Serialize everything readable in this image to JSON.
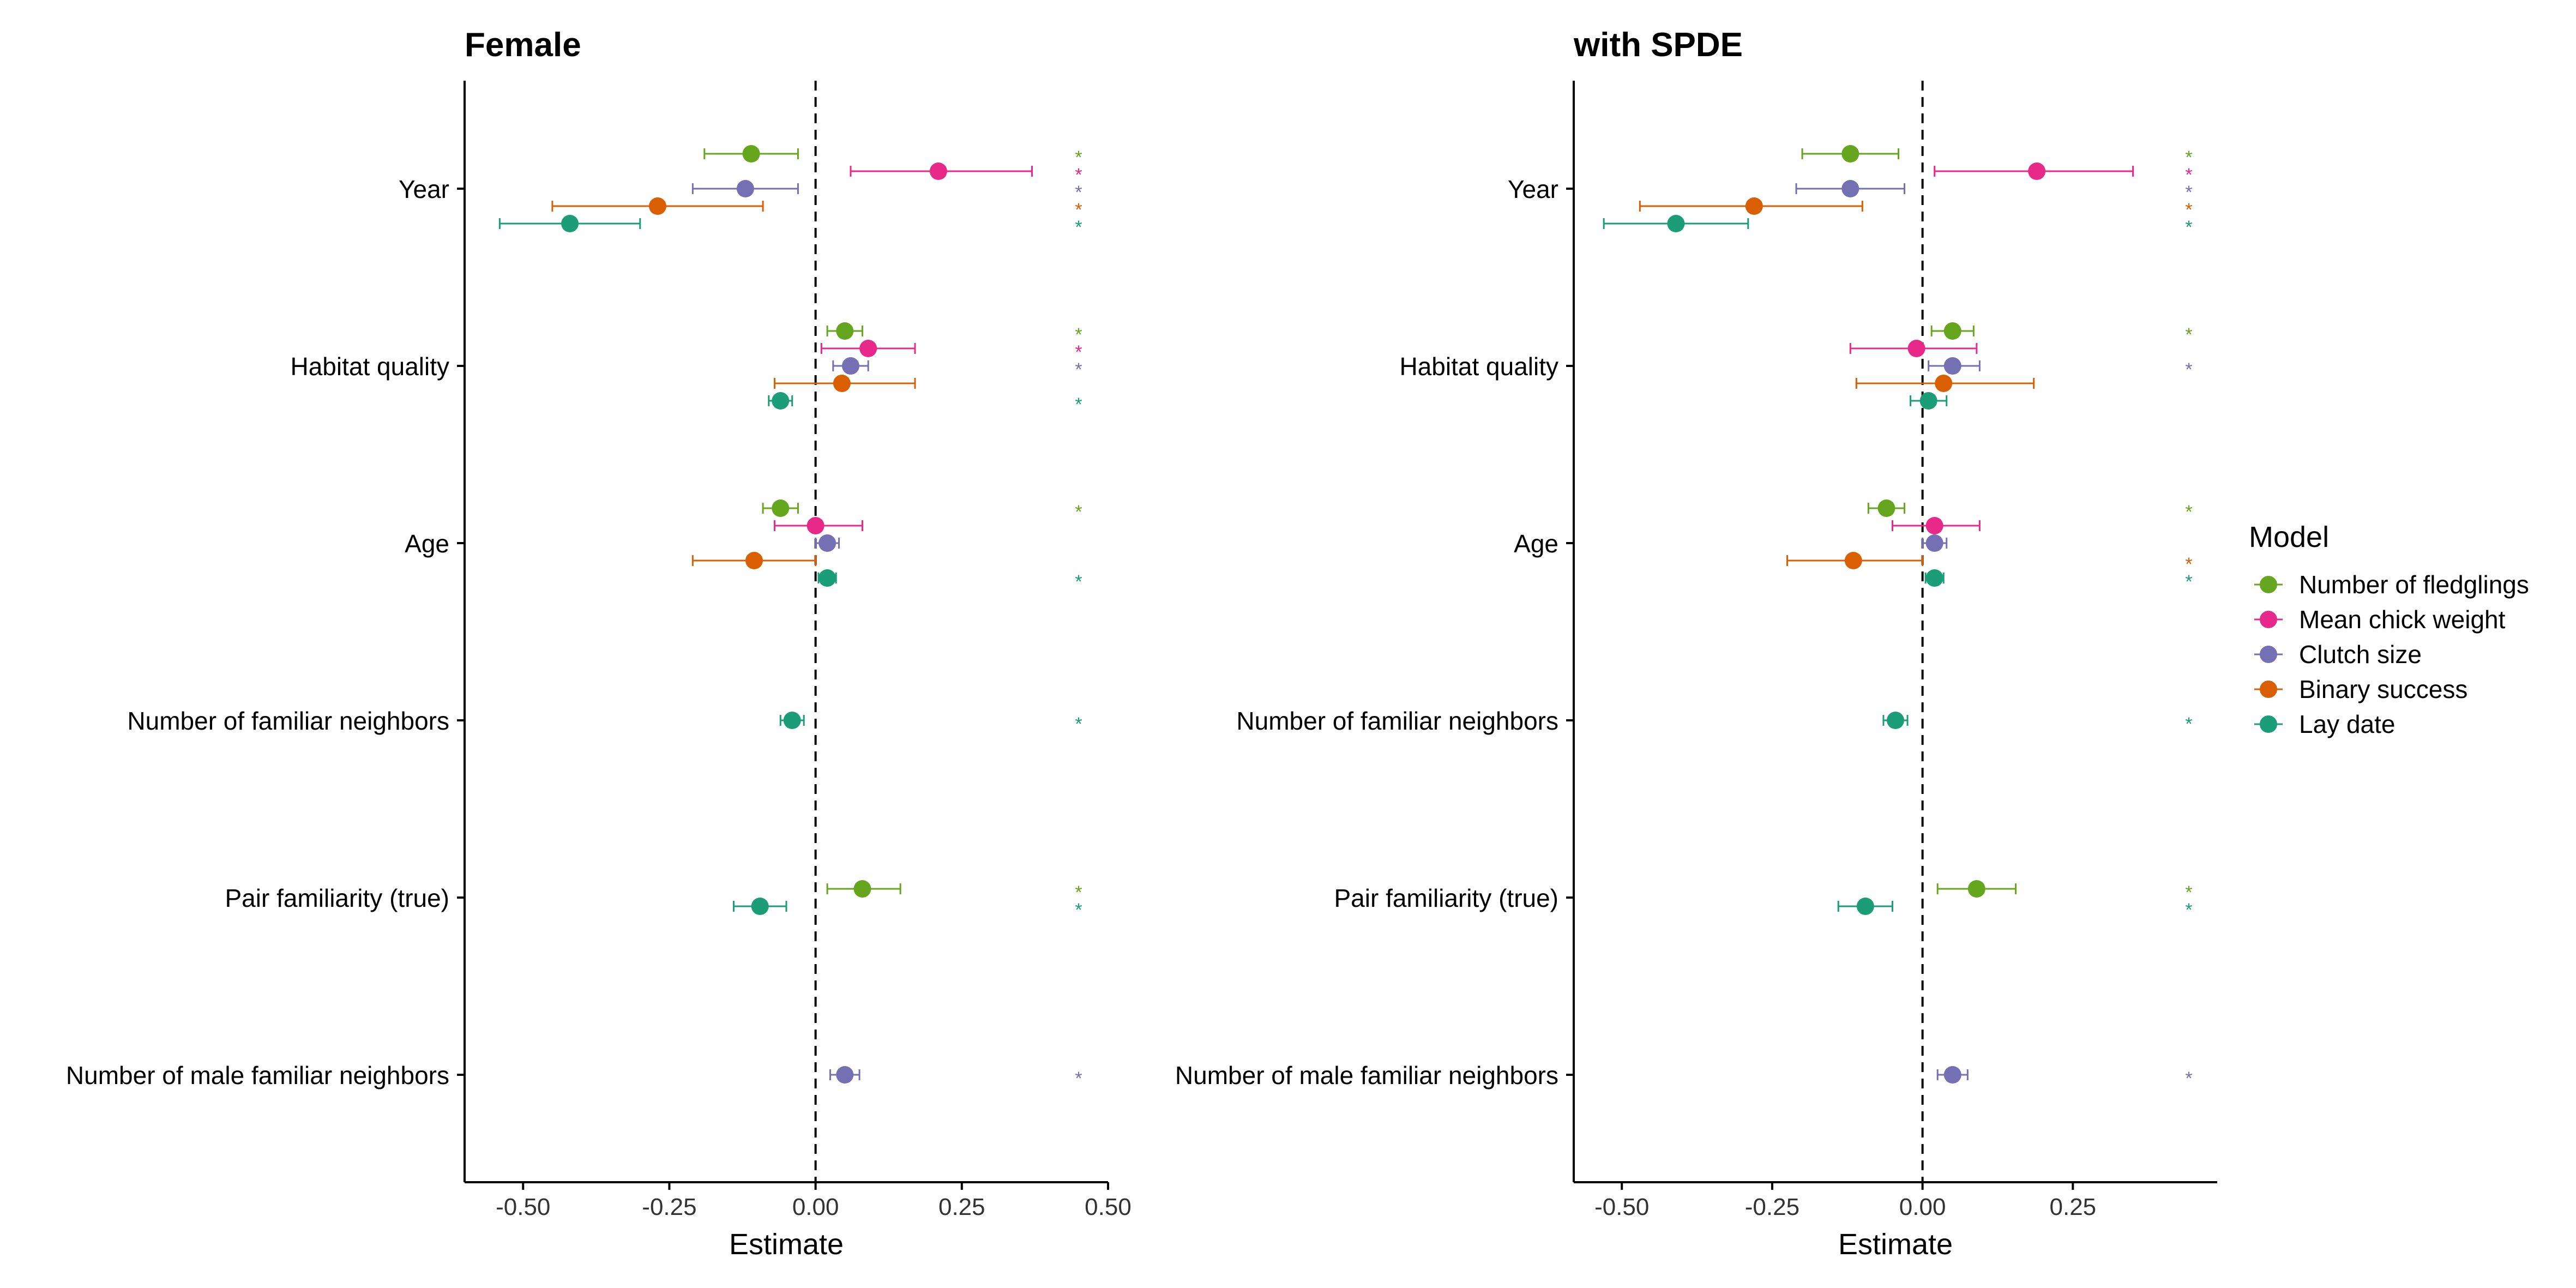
{
  "chart_data": [
    {
      "type": "dot-whisker",
      "title": "Female",
      "xlabel": "Estimate",
      "ylabel": "",
      "xlim": [
        -0.6,
        0.5
      ],
      "xticks": [
        -0.5,
        -0.25,
        0.0,
        0.25,
        0.5
      ],
      "xtick_labels": [
        "-0.50",
        "-0.25",
        "0.00",
        "0.25",
        "0.50"
      ],
      "reference_line": 0,
      "categories": [
        "Year",
        "Habitat quality",
        "Age",
        "Number of familiar neighbors",
        "Pair familiarity (true)",
        "Number of male familiar neighbors"
      ],
      "series": [
        {
          "name": "Number of fledglings",
          "points": [
            {
              "category": "Year",
              "estimate": -0.11,
              "lower": -0.19,
              "upper": -0.03,
              "significant": true
            },
            {
              "category": "Habitat quality",
              "estimate": 0.05,
              "lower": 0.02,
              "upper": 0.08,
              "significant": true
            },
            {
              "category": "Age",
              "estimate": -0.06,
              "lower": -0.09,
              "upper": -0.03,
              "significant": true
            },
            {
              "category": "Pair familiarity (true)",
              "estimate": 0.08,
              "lower": 0.02,
              "upper": 0.145,
              "significant": true
            }
          ]
        },
        {
          "name": "Mean chick weight",
          "points": [
            {
              "category": "Year",
              "estimate": 0.21,
              "lower": 0.06,
              "upper": 0.37,
              "significant": true
            },
            {
              "category": "Habitat quality",
              "estimate": 0.09,
              "lower": 0.01,
              "upper": 0.17,
              "significant": true
            },
            {
              "category": "Age",
              "estimate": 0.0,
              "lower": -0.07,
              "upper": 0.08,
              "significant": false
            }
          ]
        },
        {
          "name": "Clutch size",
          "points": [
            {
              "category": "Year",
              "estimate": -0.12,
              "lower": -0.21,
              "upper": -0.03,
              "significant": true
            },
            {
              "category": "Habitat quality",
              "estimate": 0.06,
              "lower": 0.03,
              "upper": 0.09,
              "significant": true
            },
            {
              "category": "Age",
              "estimate": 0.02,
              "lower": 0.0,
              "upper": 0.04,
              "significant": false
            },
            {
              "category": "Number of male familiar neighbors",
              "estimate": 0.05,
              "lower": 0.025,
              "upper": 0.075,
              "significant": true
            }
          ]
        },
        {
          "name": "Binary success",
          "points": [
            {
              "category": "Year",
              "estimate": -0.27,
              "lower": -0.45,
              "upper": -0.09,
              "significant": true
            },
            {
              "category": "Habitat quality",
              "estimate": 0.045,
              "lower": -0.07,
              "upper": 0.17,
              "significant": false
            },
            {
              "category": "Age",
              "estimate": -0.105,
              "lower": -0.21,
              "upper": 0.0,
              "significant": false
            }
          ]
        },
        {
          "name": "Lay date",
          "points": [
            {
              "category": "Year",
              "estimate": -0.42,
              "lower": -0.54,
              "upper": -0.3,
              "significant": true
            },
            {
              "category": "Habitat quality",
              "estimate": -0.06,
              "lower": -0.08,
              "upper": -0.04,
              "significant": true
            },
            {
              "category": "Age",
              "estimate": 0.02,
              "lower": 0.005,
              "upper": 0.035,
              "significant": true
            },
            {
              "category": "Number of familiar neighbors",
              "estimate": -0.04,
              "lower": -0.06,
              "upper": -0.02,
              "significant": true
            },
            {
              "category": "Pair familiarity (true)",
              "estimate": -0.095,
              "lower": -0.14,
              "upper": -0.05,
              "significant": true
            }
          ]
        }
      ]
    },
    {
      "type": "dot-whisker",
      "title": "with SPDE",
      "xlabel": "Estimate",
      "ylabel": "",
      "xlim": [
        -0.58,
        0.49
      ],
      "xticks": [
        -0.5,
        -0.25,
        0.0,
        0.25
      ],
      "xtick_labels": [
        "-0.50",
        "-0.25",
        "0.00",
        "0.25"
      ],
      "reference_line": 0,
      "categories": [
        "Year",
        "Habitat quality",
        "Age",
        "Number of familiar neighbors",
        "Pair familiarity (true)",
        "Number of male familiar neighbors"
      ],
      "series": [
        {
          "name": "Number of fledglings",
          "points": [
            {
              "category": "Year",
              "estimate": -0.12,
              "lower": -0.2,
              "upper": -0.04,
              "significant": true
            },
            {
              "category": "Habitat quality",
              "estimate": 0.05,
              "lower": 0.015,
              "upper": 0.085,
              "significant": true
            },
            {
              "category": "Age",
              "estimate": -0.06,
              "lower": -0.09,
              "upper": -0.03,
              "significant": true
            },
            {
              "category": "Pair familiarity (true)",
              "estimate": 0.09,
              "lower": 0.025,
              "upper": 0.155,
              "significant": true
            }
          ]
        },
        {
          "name": "Mean chick weight",
          "points": [
            {
              "category": "Year",
              "estimate": 0.19,
              "lower": 0.02,
              "upper": 0.35,
              "significant": true
            },
            {
              "category": "Habitat quality",
              "estimate": -0.01,
              "lower": -0.12,
              "upper": 0.09,
              "significant": false
            },
            {
              "category": "Age",
              "estimate": 0.02,
              "lower": -0.05,
              "upper": 0.095,
              "significant": false
            }
          ]
        },
        {
          "name": "Clutch size",
          "points": [
            {
              "category": "Year",
              "estimate": -0.12,
              "lower": -0.21,
              "upper": -0.03,
              "significant": true
            },
            {
              "category": "Habitat quality",
              "estimate": 0.05,
              "lower": 0.01,
              "upper": 0.095,
              "significant": true
            },
            {
              "category": "Age",
              "estimate": 0.02,
              "lower": 0.0,
              "upper": 0.04,
              "significant": false
            },
            {
              "category": "Number of male familiar neighbors",
              "estimate": 0.05,
              "lower": 0.025,
              "upper": 0.075,
              "significant": true
            }
          ]
        },
        {
          "name": "Binary success",
          "points": [
            {
              "category": "Year",
              "estimate": -0.28,
              "lower": -0.47,
              "upper": -0.1,
              "significant": true
            },
            {
              "category": "Habitat quality",
              "estimate": 0.035,
              "lower": -0.11,
              "upper": 0.185,
              "significant": false
            },
            {
              "category": "Age",
              "estimate": -0.115,
              "lower": -0.225,
              "upper": 0.0,
              "significant": true
            }
          ]
        },
        {
          "name": "Lay date",
          "points": [
            {
              "category": "Year",
              "estimate": -0.41,
              "lower": -0.53,
              "upper": -0.29,
              "significant": true
            },
            {
              "category": "Habitat quality",
              "estimate": 0.01,
              "lower": -0.02,
              "upper": 0.04,
              "significant": false
            },
            {
              "category": "Age",
              "estimate": 0.02,
              "lower": 0.005,
              "upper": 0.035,
              "significant": true
            },
            {
              "category": "Number of familiar neighbors",
              "estimate": -0.045,
              "lower": -0.065,
              "upper": -0.025,
              "significant": true
            },
            {
              "category": "Pair familiarity (true)",
              "estimate": -0.095,
              "lower": -0.14,
              "upper": -0.05,
              "significant": true
            }
          ]
        }
      ]
    }
  ],
  "legend": {
    "title": "Model",
    "placement": "right",
    "entries": [
      {
        "label": "Number of fledglings",
        "color": "#66A61E"
      },
      {
        "label": "Mean chick weight",
        "color": "#E7298A"
      },
      {
        "label": "Clutch size",
        "color": "#7570B3"
      },
      {
        "label": "Binary success",
        "color": "#D95F02"
      },
      {
        "label": "Lay date",
        "color": "#1B9E77"
      }
    ]
  },
  "significance_marker": "*"
}
